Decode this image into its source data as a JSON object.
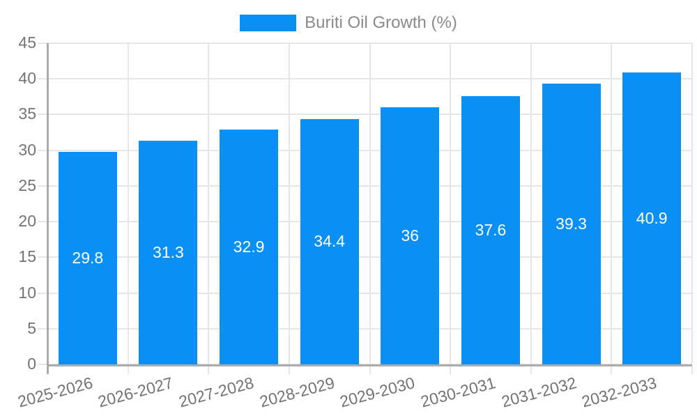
{
  "chart_data": {
    "type": "bar",
    "categories": [
      "2025-2026",
      "2026-2027",
      "2027-2028",
      "2028-2029",
      "2029-2030",
      "2030-2031",
      "2031-2032",
      "2032-2033"
    ],
    "series": [
      {
        "name": "Buriti Oil Growth (%)",
        "values": [
          29.8,
          31.3,
          32.9,
          34.4,
          36,
          37.6,
          39.3,
          40.9
        ]
      }
    ],
    "data_labels": [
      "29.8",
      "31.3",
      "32.9",
      "34.4",
      "36",
      "37.6",
      "39.3",
      "40.9"
    ],
    "xlabel": "",
    "ylabel": "",
    "ylim": [
      0,
      45
    ],
    "y_ticks": [
      0,
      5,
      10,
      15,
      20,
      25,
      30,
      35,
      40,
      45
    ],
    "grid": true,
    "legend_position": "top",
    "x_tick_rotation_deg": -15,
    "colors": {
      "bar": "#0a90f4",
      "grid": "#e6e6e6",
      "axis": "#ababab",
      "tick_label": "#737373",
      "legend_text": "#8a8a8a",
      "data_label": "#ffffff",
      "background": "#ffffff"
    }
  }
}
